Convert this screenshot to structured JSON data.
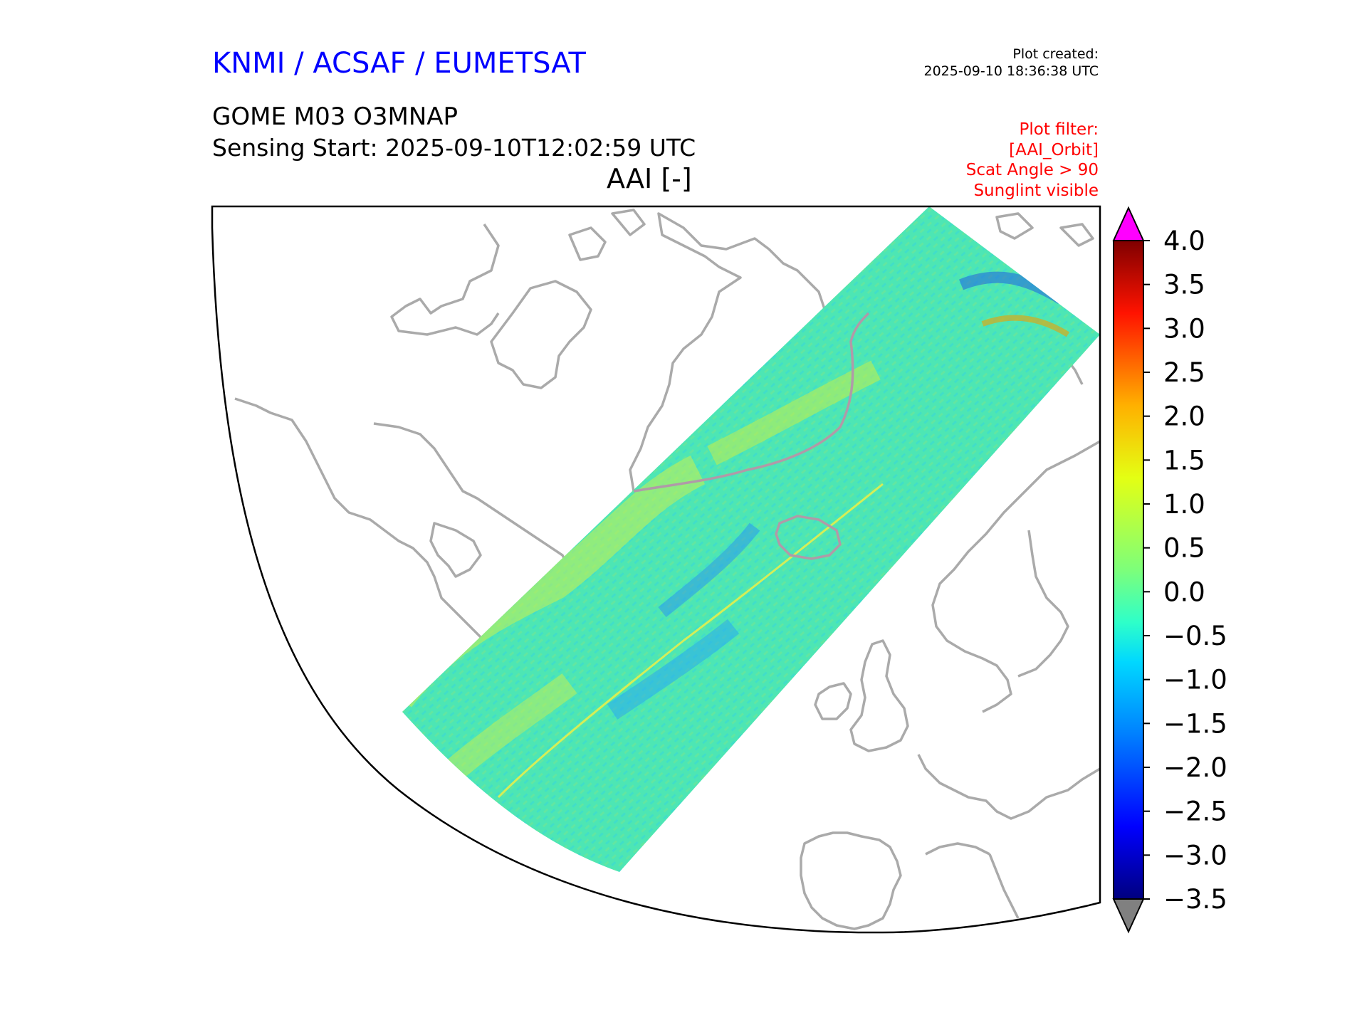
{
  "header": {
    "brand": "KNMI / ACSAF / EUMETSAT",
    "created_label": "Plot created:",
    "created_time": "2025-09-10 18:36:38 UTC",
    "product": "GOME M03 O3MNAP",
    "sensing_start": "Sensing Start: 2025-09-10T12:02:59 UTC",
    "quantity": "AAI [-]"
  },
  "filter": {
    "lines": [
      "Plot filter:",
      "[AAI_Orbit]",
      "Scat Angle > 90",
      "Sunglint visible"
    ]
  },
  "colorbar": {
    "ticks": [
      "4.0",
      "3.5",
      "3.0",
      "2.5",
      "2.0",
      "1.5",
      "1.0",
      "0.5",
      "0.0",
      "−0.5",
      "−1.0",
      "−1.5",
      "−2.0",
      "−2.5",
      "−3.0",
      "−3.5"
    ],
    "over_color": "#ff00ff",
    "under_color": "#808080"
  },
  "colors": {
    "brand": "#0000ff",
    "filter": "#ff0000",
    "coastline": "#aaaaaa",
    "swath_base": "#4de6b4"
  },
  "map": {
    "projection": "polar stereographic sector (North Atlantic / Arctic)",
    "swath_value_typical": "-0.5 to 0.5"
  }
}
